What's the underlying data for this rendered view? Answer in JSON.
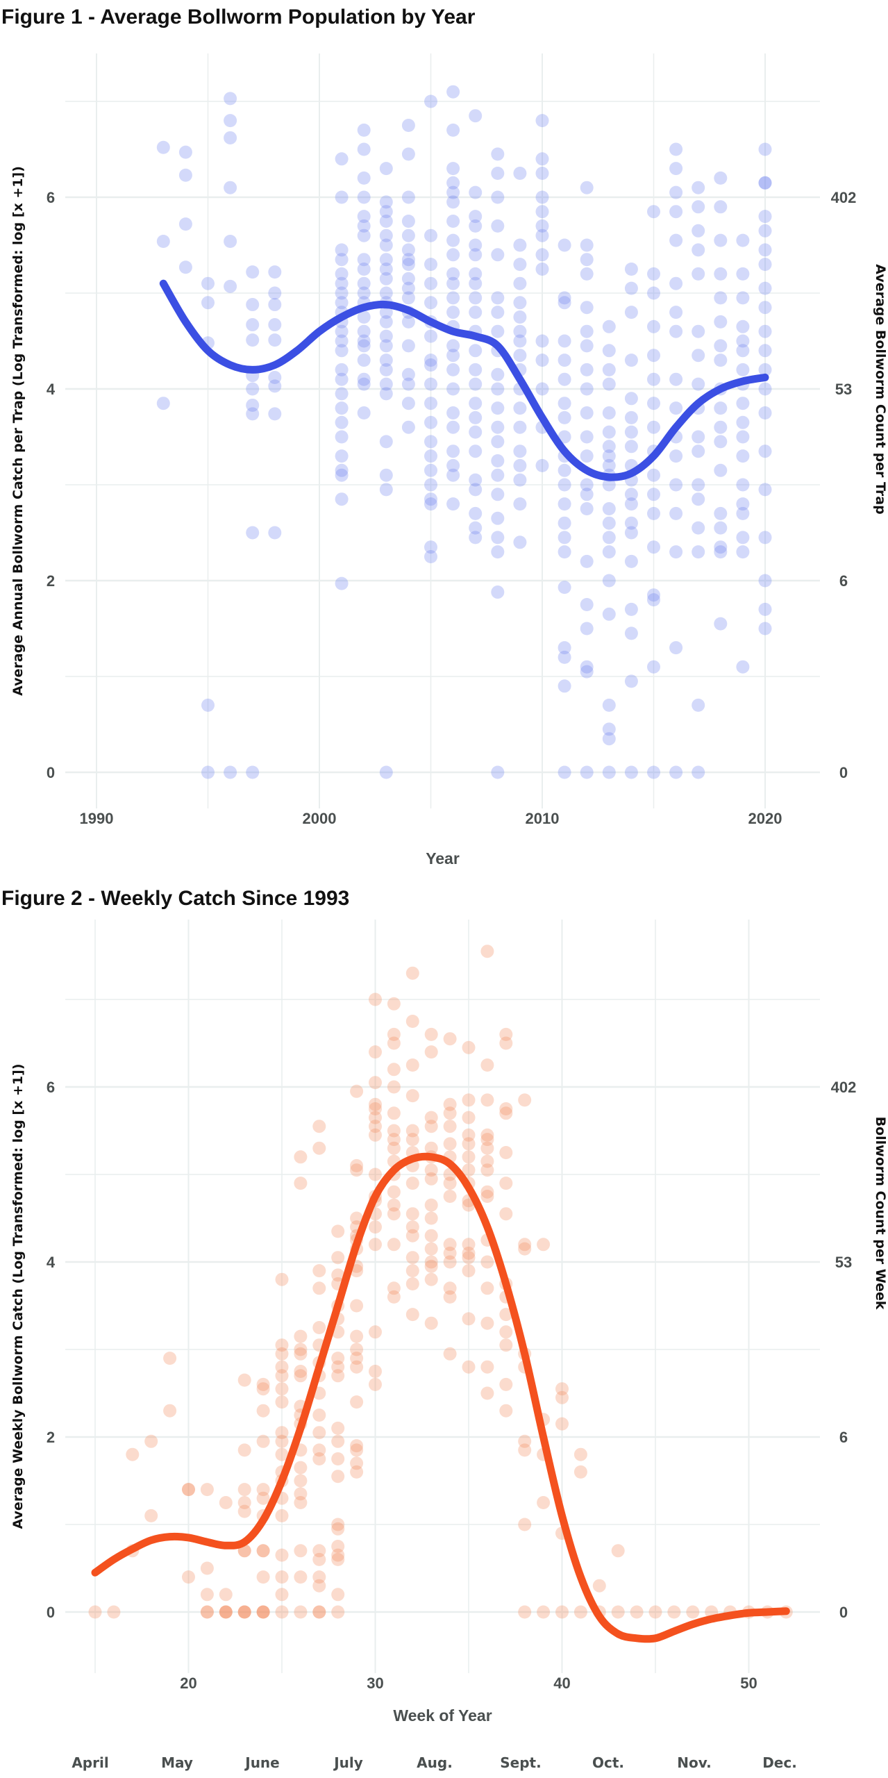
{
  "chart_data": [
    {
      "type": "scatter",
      "title": "Figure 1 - Average Bollworm Population by Year",
      "xlabel": "Year",
      "ylabel": "Average Annual Bollworm Catch per Trap (Log Transformed: log [x +1])",
      "ylabel_right": "Average Bollworm Count per Trap",
      "xlim": [
        1988.6,
        2023.9
      ],
      "ylim": [
        -0.38,
        7.5
      ],
      "xticks": [
        1990,
        2000,
        2010,
        2020
      ],
      "xtick_labels": [
        "1990",
        "2000",
        "2010",
        "2020"
      ],
      "yticks": [
        0,
        2,
        4,
        6
      ],
      "ytick_labels": [
        "0",
        "2",
        "4",
        "6"
      ],
      "yticks_right_labels": [
        "0",
        "6",
        "53",
        "402"
      ],
      "grid": true,
      "point_color": "#6d80ee",
      "line_color": "#3b4fe3",
      "points": {
        "1993": [
          6.52,
          5.54,
          3.85
        ],
        "1994": [
          6.47,
          6.23,
          5.72,
          5.27
        ],
        "1995": [
          5.1,
          4.9,
          4.48,
          0.7,
          0
        ],
        "1996": [
          7.03,
          6.8,
          6.62,
          6.1,
          5.54,
          5.07,
          0
        ],
        "1997": [
          5.22,
          4.88,
          4.67,
          4.51,
          4.14,
          4.0,
          3.83,
          3.74,
          2.5,
          0
        ],
        "1998": [
          5.22,
          5.0,
          4.88,
          4.67,
          4.51,
          4.12,
          4.03,
          3.74,
          2.5
        ],
        "2001": [
          6.4,
          6.0,
          5.45,
          5.35,
          5.2,
          5.1,
          5.0,
          4.9,
          4.8,
          4.7,
          4.6,
          4.5,
          4.4,
          4.2,
          4.1,
          3.95,
          3.8,
          3.65,
          3.5,
          3.3,
          3.15,
          3.1,
          2.85,
          1.97
        ],
        "2002": [
          6.7,
          6.5,
          6.2,
          6.0,
          5.8,
          5.7,
          5.6,
          5.35,
          5.25,
          5.1,
          5.0,
          4.9,
          4.75,
          4.6,
          4.5,
          4.45,
          4.3,
          4.1,
          4.05,
          3.75
        ],
        "2003": [
          6.3,
          5.95,
          5.85,
          5.75,
          5.6,
          5.5,
          5.35,
          5.25,
          5.15,
          5.0,
          4.9,
          4.8,
          4.7,
          4.55,
          4.45,
          4.3,
          4.2,
          4.05,
          3.95,
          3.45,
          3.1,
          2.95,
          0
        ],
        "2004": [
          6.75,
          6.45,
          6.0,
          5.75,
          5.6,
          5.45,
          5.35,
          5.3,
          5.15,
          5.05,
          4.95,
          4.8,
          4.7,
          4.45,
          4.15,
          4.05,
          3.85,
          3.6
        ],
        "2005": [
          7.0,
          5.6,
          5.3,
          5.1,
          4.9,
          4.7,
          4.55,
          4.3,
          4.25,
          4.05,
          3.85,
          3.65,
          3.45,
          3.3,
          3.15,
          3.0,
          2.85,
          2.8,
          2.35,
          2.25
        ],
        "2006": [
          7.1,
          6.7,
          6.3,
          6.15,
          6.05,
          5.95,
          5.75,
          5.55,
          5.4,
          5.2,
          5.1,
          4.95,
          4.8,
          4.65,
          4.45,
          4.35,
          4.2,
          4.0,
          3.75,
          3.6,
          3.35,
          3.2,
          3.1,
          2.8
        ],
        "2007": [
          6.85,
          6.05,
          5.8,
          5.7,
          5.5,
          5.4,
          5.2,
          5.1,
          4.95,
          4.8,
          4.6,
          4.4,
          4.2,
          4.05,
          3.85,
          3.7,
          3.55,
          3.35,
          3.05,
          2.95,
          2.7,
          2.55,
          2.45
        ],
        "2008": [
          6.45,
          6.25,
          6.0,
          5.7,
          5.4,
          4.95,
          4.8,
          4.6,
          4.4,
          4.15,
          4.0,
          3.8,
          3.6,
          3.45,
          3.25,
          3.1,
          2.9,
          2.65,
          2.45,
          2.3,
          1.88,
          0
        ],
        "2009": [
          6.25,
          5.5,
          5.3,
          5.1,
          4.9,
          4.75,
          4.6,
          4.5,
          4.35,
          4.2,
          4.0,
          3.8,
          3.6,
          3.35,
          3.2,
          3.05,
          2.8,
          2.4
        ],
        "2010": [
          6.8,
          6.4,
          6.25,
          6.0,
          5.85,
          5.7,
          5.6,
          5.4,
          5.25,
          4.5,
          4.3,
          4.0,
          3.6,
          3.2
        ],
        "2011": [
          5.5,
          4.95,
          4.9,
          4.5,
          4.3,
          4.1,
          3.85,
          3.7,
          3.5,
          3.3,
          3.15,
          3.0,
          2.8,
          2.6,
          2.45,
          2.3,
          1.93,
          1.3,
          1.2,
          0.9,
          0
        ],
        "2012": [
          6.1,
          5.5,
          5.35,
          5.2,
          4.85,
          4.6,
          4.45,
          4.2,
          4.0,
          3.75,
          3.5,
          3.3,
          3.0,
          2.9,
          2.75,
          2.2,
          1.75,
          1.5,
          1.1,
          1.05,
          0
        ],
        "2013": [
          4.65,
          4.4,
          4.2,
          4.05,
          3.75,
          3.55,
          3.4,
          3.3,
          3.2,
          3.1,
          3.0,
          2.75,
          2.6,
          2.45,
          2.3,
          2.0,
          1.65,
          0.7,
          0.45,
          0.35,
          0
        ],
        "2014": [
          5.25,
          5.05,
          4.8,
          4.3,
          3.9,
          3.7,
          3.55,
          3.4,
          3.2,
          3.05,
          2.9,
          2.8,
          2.6,
          2.5,
          2.2,
          1.7,
          1.45,
          0.95,
          0
        ],
        "2015": [
          5.85,
          5.2,
          5.0,
          4.65,
          4.35,
          4.1,
          3.85,
          3.6,
          3.35,
          3.1,
          2.9,
          2.7,
          2.35,
          1.85,
          1.8,
          1.1,
          0
        ],
        "2016": [
          6.5,
          6.3,
          6.05,
          5.85,
          5.55,
          5.1,
          4.8,
          4.6,
          4.1,
          3.8,
          3.5,
          3.3,
          3.0,
          2.7,
          2.3,
          1.3,
          0
        ],
        "2017": [
          6.1,
          5.9,
          5.65,
          5.45,
          5.2,
          4.6,
          4.35,
          4.05,
          3.8,
          3.5,
          3.35,
          3.0,
          2.85,
          2.55,
          2.3,
          0.7,
          0
        ],
        "2018": [
          6.2,
          5.9,
          5.55,
          5.2,
          4.95,
          4.7,
          4.45,
          4.3,
          4.0,
          3.8,
          3.6,
          3.45,
          3.15,
          2.7,
          2.55,
          2.35,
          2.3,
          1.55
        ],
        "2019": [
          5.55,
          5.2,
          4.95,
          4.65,
          4.5,
          4.4,
          4.2,
          4.05,
          3.85,
          3.65,
          3.5,
          3.3,
          3.0,
          2.8,
          2.7,
          2.45,
          2.3,
          1.1
        ],
        "2020": [
          6.5,
          6.15,
          6.15,
          5.8,
          5.65,
          5.45,
          5.3,
          5.05,
          4.85,
          4.6,
          4.4,
          4.2,
          4.0,
          3.75,
          3.35,
          2.95,
          2.45,
          2.0,
          1.7,
          1.5
        ]
      },
      "smooth": {
        "x": [
          1993,
          1994,
          1995,
          1996,
          1997,
          1998,
          1999,
          2000,
          2001,
          2002,
          2003,
          2004,
          2005,
          2006,
          2007,
          2008,
          2009,
          2010,
          2011,
          2012,
          2013,
          2014,
          2015,
          2016,
          2017,
          2018,
          2019,
          2020
        ],
        "y": [
          5.1,
          4.7,
          4.4,
          4.25,
          4.2,
          4.25,
          4.4,
          4.6,
          4.75,
          4.85,
          4.88,
          4.82,
          4.7,
          4.6,
          4.55,
          4.45,
          4.1,
          3.7,
          3.35,
          3.15,
          3.08,
          3.12,
          3.3,
          3.6,
          3.85,
          4.0,
          4.08,
          4.12
        ]
      }
    },
    {
      "type": "scatter",
      "title": "Figure 2 - Weekly Catch Since 1993",
      "xlabel": "Week of Year",
      "ylabel": "Average Weekly Bollworm Catch (Log Transformed: log [x +1])",
      "ylabel_right": "Bollworm Count per Week",
      "xlim": [
        13.4,
        53.8
      ],
      "ylim": [
        -0.7,
        7.9
      ],
      "xticks": [
        20,
        30,
        40,
        50
      ],
      "xtick_labels": [
        "20",
        "30",
        "40",
        "50"
      ],
      "yticks": [
        0,
        2,
        4,
        6
      ],
      "ytick_labels": [
        "0",
        "2",
        "4",
        "6"
      ],
      "yticks_right_labels": [
        "0",
        "6",
        "53",
        "402"
      ],
      "months": [
        "April",
        "May",
        "June",
        "July",
        "Aug.",
        "Sept.",
        "Oct.",
        "Nov.",
        "Dec."
      ],
      "grid": true,
      "point_color": "#f2875a",
      "line_color": "#f4511e",
      "points": {
        "15": [
          0
        ],
        "16": [
          0
        ],
        "17": [
          1.8,
          0.7
        ],
        "18": [
          1.95,
          1.1
        ],
        "19": [
          2.9,
          2.3
        ],
        "20": [
          1.4,
          1.4,
          0.4
        ],
        "21": [
          1.4,
          0.5,
          0.2,
          0,
          0
        ],
        "22": [
          1.25,
          0.2,
          0,
          0,
          0
        ],
        "23": [
          2.65,
          1.85,
          1.4,
          1.25,
          1.15,
          0.7,
          0.7,
          0,
          0,
          0
        ],
        "24": [
          2.6,
          2.55,
          2.3,
          1.95,
          1.4,
          1.3,
          1.1,
          0.7,
          0.7,
          0.4,
          0,
          0,
          0
        ],
        "25": [
          3.8,
          3.05,
          2.95,
          2.8,
          2.7,
          2.55,
          2.4,
          2.05,
          1.95,
          1.8,
          1.6,
          1.5,
          1.3,
          1.1,
          0.65,
          0.4,
          0.2,
          0
        ],
        "26": [
          5.2,
          4.9,
          3.15,
          3.0,
          2.95,
          2.75,
          2.7,
          2.35,
          2.25,
          2.15,
          1.85,
          1.65,
          1.5,
          1.35,
          1.25,
          0.7,
          0.4,
          0
        ],
        "27": [
          5.55,
          5.3,
          3.9,
          3.7,
          3.25,
          3.05,
          2.85,
          2.7,
          2.5,
          2.25,
          2.05,
          1.85,
          1.75,
          0.7,
          0.6,
          0.4,
          0.3,
          0,
          0
        ],
        "28": [
          4.35,
          4.05,
          3.85,
          3.75,
          3.5,
          3.35,
          3.2,
          2.9,
          2.8,
          2.7,
          2.1,
          1.95,
          1.75,
          1.55,
          1.0,
          0.95,
          0.75,
          0.65,
          0.6,
          0.2,
          0
        ],
        "29": [
          5.95,
          5.1,
          5.05,
          4.5,
          4.4,
          4.3,
          4.25,
          4.15,
          3.95,
          3.9,
          3.5,
          3.15,
          3.0,
          2.9,
          2.8,
          2.4,
          1.9,
          1.85,
          1.7,
          1.6
        ],
        "30": [
          7.0,
          6.4,
          6.05,
          5.8,
          5.75,
          5.65,
          5.55,
          5.45,
          5.0,
          4.75,
          4.7,
          4.55,
          4.4,
          4.2,
          3.2,
          2.75,
          2.6
        ],
        "31": [
          6.95,
          6.6,
          6.5,
          6.2,
          6.0,
          5.7,
          5.5,
          5.4,
          5.3,
          5.15,
          5.0,
          4.8,
          4.65,
          4.55,
          4.2,
          3.7,
          3.6
        ],
        "32": [
          7.3,
          6.75,
          6.25,
          5.9,
          5.5,
          5.4,
          5.25,
          5.1,
          4.9,
          4.55,
          4.4,
          4.3,
          4.05,
          3.9,
          3.75,
          3.4
        ],
        "33": [
          6.6,
          6.4,
          5.65,
          5.55,
          5.3,
          5.2,
          5.05,
          4.95,
          4.65,
          4.5,
          4.3,
          4.15,
          4.0,
          3.95,
          3.8,
          3.3
        ],
        "34": [
          6.55,
          5.8,
          5.7,
          5.55,
          5.35,
          5.2,
          5.0,
          4.9,
          4.75,
          4.2,
          4.1,
          4.0,
          3.7,
          3.6,
          2.95
        ],
        "35": [
          6.45,
          5.85,
          5.65,
          5.45,
          5.35,
          5.2,
          5.05,
          4.9,
          4.7,
          4.65,
          4.2,
          4.1,
          4.05,
          3.9,
          3.35,
          2.8
        ],
        "36": [
          7.55,
          6.25,
          5.85,
          5.45,
          5.4,
          5.3,
          5.15,
          5.05,
          4.8,
          4.75,
          4.25,
          4.0,
          3.7,
          3.3,
          2.8,
          2.5
        ],
        "37": [
          6.6,
          6.5,
          5.75,
          5.7,
          5.25,
          4.9,
          4.55,
          3.75,
          3.6,
          3.4,
          3.2,
          3.05,
          2.6,
          2.3
        ],
        "38": [
          5.85,
          4.2,
          4.15,
          2.95,
          2.8,
          1.95,
          1.85,
          1.0,
          0
        ],
        "39": [
          4.2,
          2.2,
          1.8,
          1.25,
          0
        ],
        "40": [
          2.55,
          2.45,
          2.15,
          0.9,
          0
        ],
        "41": [
          1.8,
          1.6,
          0
        ],
        "42": [
          0.3,
          0
        ],
        "43": [
          0.7,
          0
        ],
        "44": [
          0
        ],
        "45": [
          0
        ],
        "46": [
          0
        ],
        "47": [
          0
        ],
        "48": [
          0
        ],
        "49": [
          0
        ],
        "50": [
          0
        ],
        "51": [
          0
        ],
        "52": [
          0
        ]
      },
      "smooth": {
        "x": [
          15,
          16,
          17,
          18,
          19,
          20,
          21,
          22,
          23,
          24,
          25,
          26,
          27,
          28,
          29,
          30,
          31,
          32,
          33,
          34,
          35,
          36,
          37,
          38,
          39,
          40,
          41,
          42,
          43,
          44,
          45,
          46,
          47,
          48,
          49,
          50,
          51,
          52
        ],
        "y": [
          0.45,
          0.6,
          0.72,
          0.82,
          0.86,
          0.85,
          0.8,
          0.76,
          0.8,
          1.05,
          1.5,
          2.1,
          2.8,
          3.5,
          4.2,
          4.75,
          5.05,
          5.18,
          5.2,
          5.12,
          4.85,
          4.4,
          3.75,
          2.95,
          2.0,
          1.1,
          0.4,
          -0.05,
          -0.25,
          -0.3,
          -0.3,
          -0.22,
          -0.14,
          -0.08,
          -0.04,
          -0.01,
          0.0,
          0.01
        ]
      }
    }
  ]
}
